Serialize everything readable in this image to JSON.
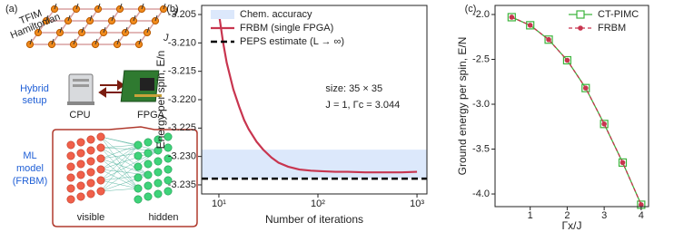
{
  "diagram": {
    "label": "(a)",
    "lattice_title": [
      "TFIM",
      "Hamiltonian"
    ],
    "couplings": [
      "J",
      "J"
    ],
    "setup_label": [
      "Hybrid",
      "setup"
    ],
    "cpu": "CPU",
    "fpga": "FPGA",
    "model_label": [
      "ML",
      "model",
      "(FRBM)"
    ],
    "visible": "visible",
    "hidden": "hidden"
  },
  "chart_data": [
    {
      "type": "line",
      "label": "(b)",
      "xlabel": "Number of iterations",
      "ylabel": "Energy per spin, E/n",
      "xscale": "log",
      "xlim": [
        6.7,
        1260
      ],
      "xticks": [
        {
          "value": 10,
          "label": "10¹"
        },
        {
          "value": 100,
          "label": "10²"
        },
        {
          "value": 1000,
          "label": "10³"
        }
      ],
      "ylim": [
        -3.2366,
        -3.2034
      ],
      "yticks": [
        -3.205,
        {
          "value": -3.21,
          "label": "-3.210"
        },
        -3.215,
        {
          "value": -3.22,
          "label": "-3.220"
        },
        -3.225,
        {
          "value": -3.23,
          "label": "-3.230"
        },
        -3.235
      ],
      "legend": "upper left",
      "band": {
        "name": "Chem. accuracy",
        "color": "#dce8fb",
        "values": [
          -3.2339,
          -3.2288
        ]
      },
      "x": [
        10,
        11,
        12,
        14,
        16,
        18,
        20,
        24,
        28,
        34,
        40,
        50,
        65,
        85,
        110,
        150,
        200,
        300,
        450,
        700,
        1000
      ],
      "series": [
        {
          "name": "FRBM (single FPGA)",
          "color": "#c8354f",
          "values": [
            -3.2048,
            -3.2098,
            -3.2135,
            -3.2182,
            -3.2212,
            -3.2236,
            -3.2252,
            -3.2274,
            -3.2288,
            -3.2302,
            -3.2311,
            -3.2318,
            -3.2323,
            -3.2325,
            -3.2326,
            -3.2327,
            -3.2327,
            -3.2328,
            -3.2328,
            -3.2328,
            -3.2327
          ]
        }
      ],
      "reference_line": {
        "name": "PEPS estimate (L → ∞)",
        "color": "#000000",
        "value": -3.2339
      },
      "annotations": [
        "size: 35 × 35",
        "J = 1, Γc = 3.044"
      ]
    },
    {
      "type": "line",
      "label": "(c)",
      "xlabel": "Γx/J",
      "ylabel": "Ground energy per spin, E/N",
      "xscale": "linear",
      "xlim": [
        0.05,
        4.2
      ],
      "xticks": [
        1,
        2,
        3,
        4
      ],
      "ylim": [
        -4.141,
        -1.899
      ],
      "yticks": [
        {
          "value": -2,
          "label": "-2.0"
        },
        -2.5,
        {
          "value": -3,
          "label": "-3.0"
        },
        -3.5,
        {
          "value": -4,
          "label": "-4.0"
        }
      ],
      "legend": "upper right",
      "x": [
        0.5,
        1,
        1.5,
        2,
        2.5,
        3,
        3.5,
        4
      ],
      "series": [
        {
          "name": "CT-PIMC",
          "color": "#3cb43c",
          "marker": "square",
          "values": [
            -2.03,
            -2.12,
            -2.28,
            -2.51,
            -2.82,
            -3.22,
            -3.65,
            -4.12
          ]
        },
        {
          "name": "FRBM",
          "color": "#c8354f",
          "marker": "circle",
          "style": "dashed",
          "values": [
            -2.03,
            -2.12,
            -2.28,
            -2.51,
            -2.82,
            -3.22,
            -3.65,
            -4.12
          ]
        }
      ]
    }
  ]
}
